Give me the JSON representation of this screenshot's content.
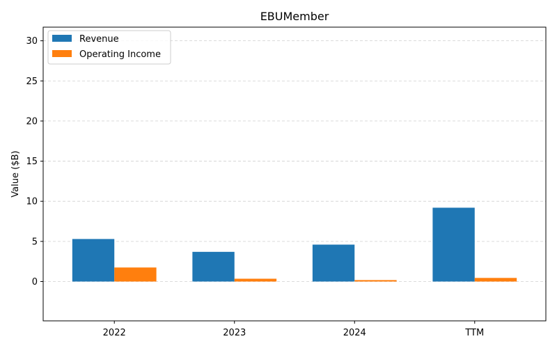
{
  "chart_data": {
    "type": "bar",
    "title": "EBUMember",
    "xlabel": "",
    "ylabel": "Value ($B)",
    "categories": [
      "2022",
      "2023",
      "2024",
      "TTM"
    ],
    "series": [
      {
        "name": "Revenue",
        "color": "#1f77b4",
        "values": [
          5.3,
          3.7,
          4.6,
          9.2
        ]
      },
      {
        "name": "Operating Income",
        "color": "#ff7f0e",
        "values": [
          1.75,
          0.35,
          0.18,
          0.45
        ]
      }
    ],
    "ylim": [
      -4.9,
      31.7
    ],
    "yticks": [
      0,
      5,
      10,
      15,
      20,
      25,
      30
    ],
    "grid": true,
    "legend_position": "top-left"
  }
}
